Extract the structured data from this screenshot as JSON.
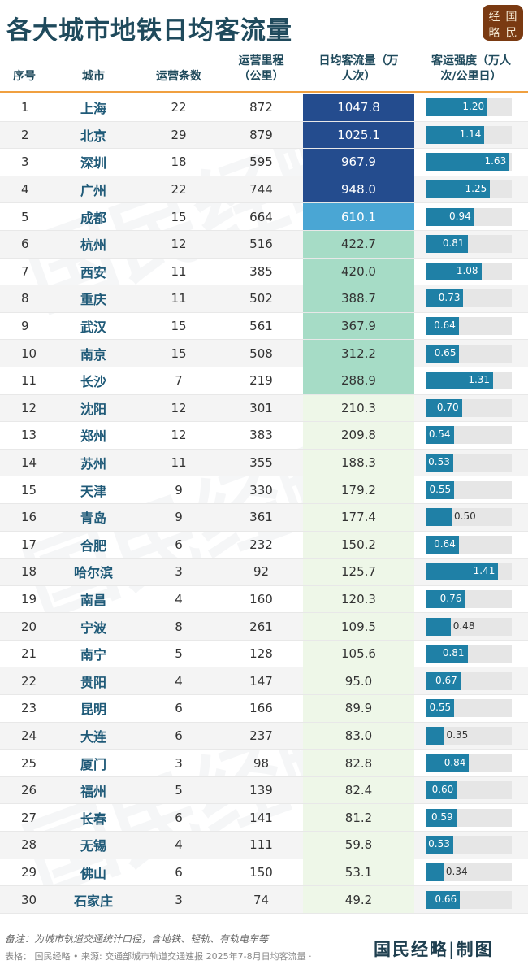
{
  "title": "各大城市地铁日均客流量",
  "logo": {
    "text": [
      "经",
      "国",
      "略",
      "民"
    ]
  },
  "columns": [
    "序号",
    "城市",
    "运营条数",
    "运营里程（公里）",
    "日均客流量（万人次）",
    "客运强度（万人次/公里日）"
  ],
  "colors": {
    "flow_high": "#244c8e",
    "flow_mid": "#4aa6d4",
    "flow_low": "#a6dcc6",
    "flow_lowest": "#eef7e8",
    "bar": "#1f80a6",
    "header_rule": "#f0a040"
  },
  "rows": [
    [
      "1",
      "上海",
      "22",
      "872",
      "1047.8",
      "1.20"
    ],
    [
      "2",
      "北京",
      "29",
      "879",
      "1025.1",
      "1.14"
    ],
    [
      "3",
      "深圳",
      "18",
      "595",
      "967.9",
      "1.63"
    ],
    [
      "4",
      "广州",
      "22",
      "744",
      "948.0",
      "1.25"
    ],
    [
      "5",
      "成都",
      "15",
      "664",
      "610.1",
      "0.94"
    ],
    [
      "6",
      "杭州",
      "12",
      "516",
      "422.7",
      "0.81"
    ],
    [
      "7",
      "西安",
      "11",
      "385",
      "420.0",
      "1.08"
    ],
    [
      "8",
      "重庆",
      "11",
      "502",
      "388.7",
      "0.73"
    ],
    [
      "9",
      "武汉",
      "15",
      "561",
      "367.9",
      "0.64"
    ],
    [
      "10",
      "南京",
      "15",
      "508",
      "312.2",
      "0.65"
    ],
    [
      "11",
      "长沙",
      "7",
      "219",
      "288.9",
      "1.31"
    ],
    [
      "12",
      "沈阳",
      "12",
      "301",
      "210.3",
      "0.70"
    ],
    [
      "13",
      "郑州",
      "12",
      "383",
      "209.8",
      "0.54"
    ],
    [
      "14",
      "苏州",
      "11",
      "355",
      "188.3",
      "0.53"
    ],
    [
      "15",
      "天津",
      "9",
      "330",
      "179.2",
      "0.55"
    ],
    [
      "16",
      "青岛",
      "9",
      "361",
      "177.4",
      "0.50"
    ],
    [
      "17",
      "合肥",
      "6",
      "232",
      "150.2",
      "0.64"
    ],
    [
      "18",
      "哈尔滨",
      "3",
      "92",
      "125.7",
      "1.41"
    ],
    [
      "19",
      "南昌",
      "4",
      "160",
      "120.3",
      "0.76"
    ],
    [
      "20",
      "宁波",
      "8",
      "261",
      "109.5",
      "0.48"
    ],
    [
      "21",
      "南宁",
      "5",
      "128",
      "105.6",
      "0.81"
    ],
    [
      "22",
      "贵阳",
      "4",
      "147",
      "95.0",
      "0.67"
    ],
    [
      "23",
      "昆明",
      "6",
      "166",
      "89.9",
      "0.55"
    ],
    [
      "24",
      "大连",
      "6",
      "237",
      "83.0",
      "0.35"
    ],
    [
      "25",
      "厦门",
      "3",
      "98",
      "82.8",
      "0.84"
    ],
    [
      "26",
      "福州",
      "5",
      "139",
      "82.4",
      "0.60"
    ],
    [
      "27",
      "长春",
      "6",
      "141",
      "81.2",
      "0.59"
    ],
    [
      "28",
      "无锡",
      "4",
      "111",
      "59.8",
      "0.53"
    ],
    [
      "29",
      "佛山",
      "6",
      "150",
      "53.1",
      "0.34"
    ],
    [
      "30",
      "石家庄",
      "3",
      "74",
      "49.2",
      "0.66"
    ]
  ],
  "footer": {
    "note": "备注：为城市轨道交通统计口径，含地铁、轻轨、有轨电车等",
    "source": "表格： 国民经略 • 来源: 交通部城市轨道交通速报 2025年7-8月日均客流量 ·",
    "brand": "国民经略|制图"
  },
  "watermark": "国民经略"
}
